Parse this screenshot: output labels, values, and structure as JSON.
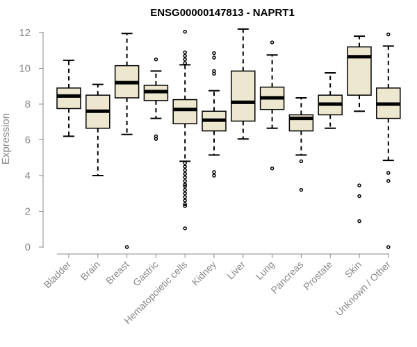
{
  "chart_data": {
    "type": "boxplot",
    "title": "ENSG00000147813 - NAPRT1",
    "ylabel": "Expression",
    "xlabel": "",
    "ylim": [
      0,
      12.3
    ],
    "yticks": [
      0,
      2,
      4,
      6,
      8,
      10,
      12
    ],
    "grid": false,
    "box_color": "#ede7cf",
    "categories": [
      "Bladder",
      "Brain",
      "Breast",
      "Gastric",
      "Hematopoietic cells",
      "Kidney",
      "Liver",
      "Lung",
      "Pancreas",
      "Prostate",
      "Skin",
      "Unknown / Other"
    ],
    "boxes": [
      {
        "whisker_low": 6.2,
        "q1": 7.75,
        "median": 8.45,
        "q3": 8.9,
        "whisker_high": 10.45,
        "outliers": []
      },
      {
        "whisker_low": 4.0,
        "q1": 6.65,
        "median": 7.6,
        "q3": 8.5,
        "whisker_high": 9.1,
        "outliers": []
      },
      {
        "whisker_low": 6.3,
        "q1": 8.35,
        "median": 9.2,
        "q3": 10.15,
        "whisker_high": 11.95,
        "outliers": [
          0.0
        ]
      },
      {
        "whisker_low": 7.2,
        "q1": 8.2,
        "median": 8.7,
        "q3": 9.05,
        "whisker_high": 9.85,
        "outliers": [
          10.5,
          6.2,
          6.05
        ]
      },
      {
        "whisker_low": 4.8,
        "q1": 6.9,
        "median": 7.7,
        "q3": 8.25,
        "whisker_high": 10.2,
        "outliers": [
          12.05,
          10.9,
          10.7,
          10.5,
          10.3,
          4.7,
          4.5,
          4.3,
          4.1,
          3.9,
          3.7,
          3.5,
          3.4,
          3.2,
          3.0,
          2.8,
          2.6,
          2.4,
          2.3,
          1.05
        ]
      },
      {
        "whisker_low": 5.15,
        "q1": 6.5,
        "median": 7.1,
        "q3": 7.6,
        "whisker_high": 8.75,
        "outliers": [
          10.85,
          10.6,
          9.85,
          9.7,
          4.2,
          4.0
        ]
      },
      {
        "whisker_low": 6.05,
        "q1": 7.05,
        "median": 8.1,
        "q3": 9.85,
        "whisker_high": 12.2,
        "outliers": []
      },
      {
        "whisker_low": 6.65,
        "q1": 7.7,
        "median": 8.35,
        "q3": 8.95,
        "whisker_high": 10.75,
        "outliers": [
          11.45,
          4.4
        ]
      },
      {
        "whisker_low": 5.15,
        "q1": 6.5,
        "median": 7.2,
        "q3": 7.4,
        "whisker_high": 8.35,
        "outliers": [
          4.8,
          3.2
        ]
      },
      {
        "whisker_low": 6.65,
        "q1": 7.4,
        "median": 8.0,
        "q3": 8.5,
        "whisker_high": 9.75,
        "outliers": []
      },
      {
        "whisker_low": 7.6,
        "q1": 8.5,
        "median": 10.65,
        "q3": 11.2,
        "whisker_high": 11.8,
        "outliers": [
          3.45,
          2.85,
          1.45
        ]
      },
      {
        "whisker_low": 4.85,
        "q1": 7.2,
        "median": 8.0,
        "q3": 8.9,
        "whisker_high": 11.25,
        "outliers": [
          11.9,
          4.15,
          3.7,
          0.0
        ]
      }
    ]
  }
}
